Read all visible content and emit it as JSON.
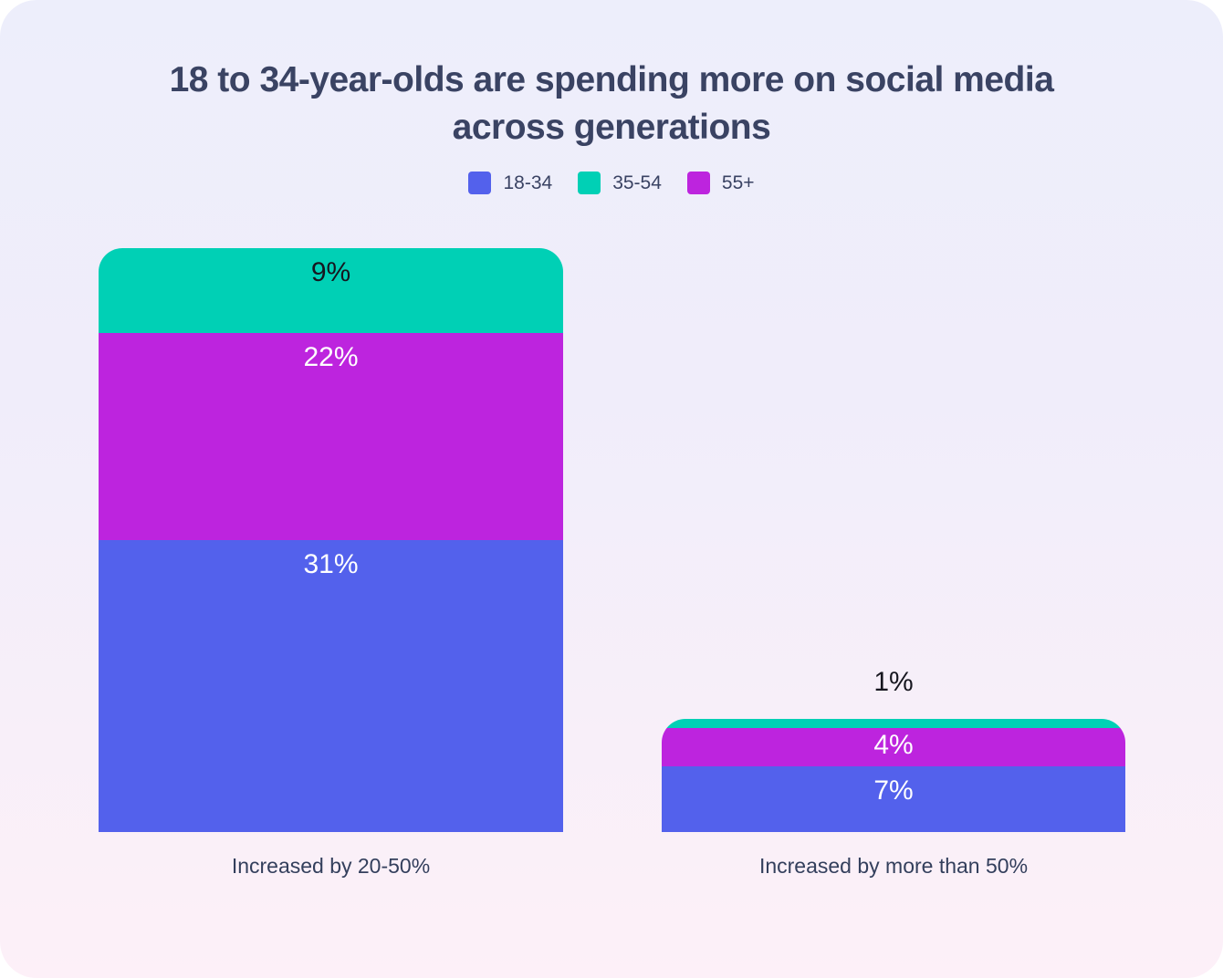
{
  "title": "18 to 34-year-olds are spending more on social media across generations",
  "colors": {
    "background_top": "#edeefb",
    "background_bottom": "#fdf0f8",
    "title_text": "#3a4363",
    "dark_value_label": "#16161f",
    "light_value_label": "#ffffff"
  },
  "chart_data": {
    "type": "bar",
    "stacked": true,
    "title": "18 to 34-year-olds are spending more on social media across generations",
    "legend_position": "top",
    "value_unit": "%",
    "categories": [
      "Increased by 20-50%",
      "Increased by more than 50%"
    ],
    "series": [
      {
        "name": "18-34",
        "color": "#5361ec",
        "values": [
          31,
          7
        ]
      },
      {
        "name": "35-54",
        "color": "#00d0b5",
        "values": [
          9,
          1
        ]
      },
      {
        "name": "55+",
        "color": "#bd24de",
        "values": [
          22,
          4
        ]
      }
    ],
    "stack_order_top_to_bottom": [
      "35-54",
      "55+",
      "18-34"
    ],
    "bars": [
      {
        "category": "Increased by 20-50%",
        "segments": [
          {
            "series": "35-54",
            "value": 9,
            "label": "9%",
            "label_style": "dark",
            "label_inside": true
          },
          {
            "series": "55+",
            "value": 22,
            "label": "22%",
            "label_style": "light",
            "label_inside": true
          },
          {
            "series": "18-34",
            "value": 31,
            "label": "31%",
            "label_style": "light",
            "label_inside": true
          }
        ]
      },
      {
        "category": "Increased by more than 50%",
        "segments": [
          {
            "series": "35-54",
            "value": 1,
            "label": "1%",
            "label_style": "dark",
            "label_inside": false
          },
          {
            "series": "55+",
            "value": 4,
            "label": "4%",
            "label_style": "light",
            "label_inside": true
          },
          {
            "series": "18-34",
            "value": 7,
            "label": "7%",
            "label_style": "light",
            "label_inside": true
          }
        ]
      }
    ]
  }
}
